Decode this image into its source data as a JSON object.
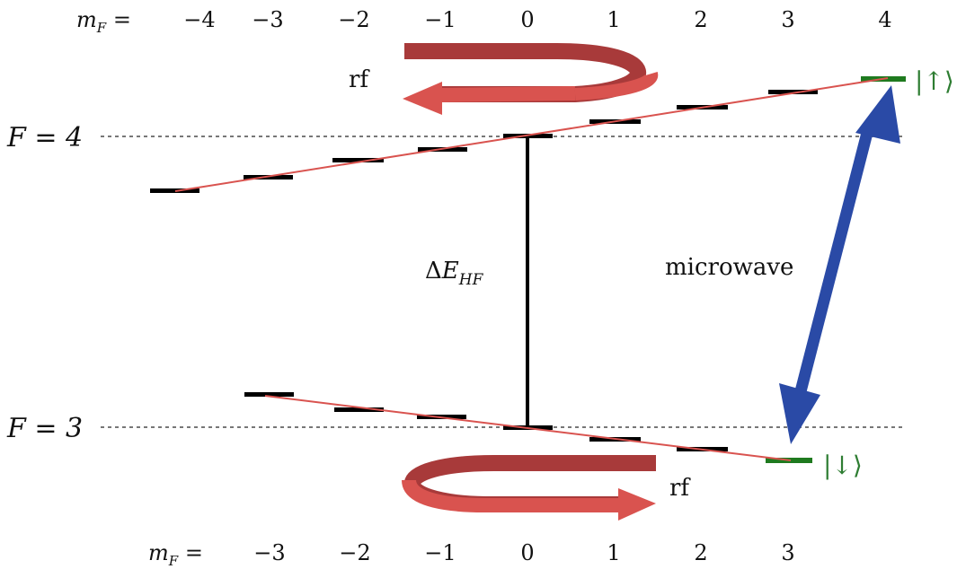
{
  "top_axis": {
    "prefix": "m_F = ",
    "labels": [
      "−4",
      "−3",
      "−2",
      "−1",
      "0",
      "1",
      "2",
      "3",
      "4"
    ]
  },
  "bottom_axis": {
    "prefix": "m_F = ",
    "labels": [
      "−3",
      "−2",
      "−1",
      "0",
      "1",
      "2",
      "3"
    ]
  },
  "levels": {
    "upper_label": "F = 4",
    "lower_label": "F = 3"
  },
  "hyperfine_label": "ΔE_HF",
  "microwave_label": "microwave",
  "rf_top_label": "rf",
  "rf_bottom_label": "rf",
  "state_up_label": "|↑⟩",
  "state_down_label": "|↓⟩",
  "colors": {
    "level": "#000000",
    "zeeman_line": "#d9534f",
    "dashed": "#777777",
    "state": "#1f7a1f",
    "microwave_arrow": "#2a4aa6",
    "rf_arrow_dark": "#a83a3a",
    "rf_arrow_light": "#d9534f"
  }
}
